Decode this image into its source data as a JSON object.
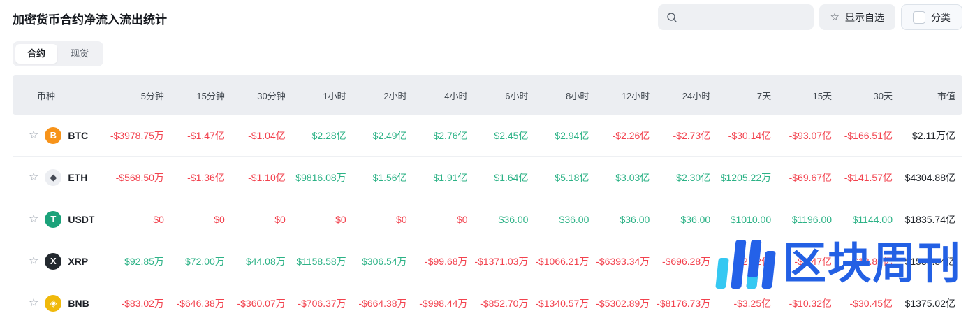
{
  "page": {
    "title": "加密货币合约净流入流出统计"
  },
  "toolbar": {
    "search": {
      "placeholder": "",
      "value": ""
    },
    "show_favorites_label": "显示自选",
    "category_label": "分类",
    "category_checked": false
  },
  "tabs": [
    {
      "label": "合约",
      "active": true
    },
    {
      "label": "现货",
      "active": false
    }
  ],
  "table": {
    "columns": [
      "币种",
      "5分钟",
      "15分钟",
      "30分钟",
      "1小时",
      "2小时",
      "4小时",
      "6小时",
      "8小时",
      "12小时",
      "24小时",
      "7天",
      "15天",
      "30天",
      "市值"
    ],
    "rows": [
      {
        "symbol": "BTC",
        "icon": {
          "name": "btc-coin-icon",
          "bg": "#f7931a",
          "fg": "#ffffff",
          "glyph": "B"
        },
        "values": [
          "-$3978.75万",
          "-$1.47亿",
          "-$1.04亿",
          "$2.28亿",
          "$2.49亿",
          "$2.76亿",
          "$2.45亿",
          "$2.94亿",
          "-$2.26亿",
          "-$2.73亿",
          "-$30.14亿",
          "-$93.07亿",
          "-$166.51亿"
        ],
        "market_cap": "$2.11万亿"
      },
      {
        "symbol": "ETH",
        "icon": {
          "name": "eth-coin-icon",
          "bg": "#eceef2",
          "fg": "#454a55",
          "glyph": "◆"
        },
        "values": [
          "-$568.50万",
          "-$1.36亿",
          "-$1.10亿",
          "$9816.08万",
          "$1.56亿",
          "$1.91亿",
          "$1.64亿",
          "$5.18亿",
          "$3.03亿",
          "$2.30亿",
          "$1205.22万",
          "-$69.67亿",
          "-$141.57亿"
        ],
        "market_cap": "$4304.88亿"
      },
      {
        "symbol": "USDT",
        "icon": {
          "name": "usdt-coin-icon",
          "bg": "#1ba27a",
          "fg": "#ffffff",
          "glyph": "T"
        },
        "values": [
          "$0",
          "$0",
          "$0",
          "$0",
          "$0",
          "$0",
          "$36.00",
          "$36.00",
          "$36.00",
          "$36.00",
          "$1010.00",
          "$1196.00",
          "$1144.00"
        ],
        "market_cap": "$1835.74亿"
      },
      {
        "symbol": "XRP",
        "icon": {
          "name": "xrp-coin-icon",
          "bg": "#23292f",
          "fg": "#ffffff",
          "glyph": "X"
        },
        "values": [
          "$92.85万",
          "$72.00万",
          "$44.08万",
          "$1158.58万",
          "$306.54万",
          "-$99.68万",
          "-$1371.03万",
          "-$1066.21万",
          "-$6393.34万",
          "-$696.28万",
          "-$2.32亿",
          "-$8.47亿",
          "-$18.80亿"
        ],
        "market_cap": "$1559.84亿"
      },
      {
        "symbol": "BNB",
        "icon": {
          "name": "bnb-coin-icon",
          "bg": "#f0b90b",
          "fg": "#ffffff",
          "glyph": "◈"
        },
        "values": [
          "-$83.02万",
          "-$646.38万",
          "-$360.07万",
          "-$706.37万",
          "-$664.38万",
          "-$998.44万",
          "-$852.70万",
          "-$1340.57万",
          "-$5302.89万",
          "-$8176.73万",
          "-$3.25亿",
          "-$10.32亿",
          "-$30.45亿"
        ],
        "market_cap": "$1375.02亿"
      }
    ]
  },
  "watermark": {
    "text": "区块周刊"
  },
  "colors": {
    "positive": "#2cb286",
    "negative": "#f2424e",
    "neutral": "#22262c"
  }
}
